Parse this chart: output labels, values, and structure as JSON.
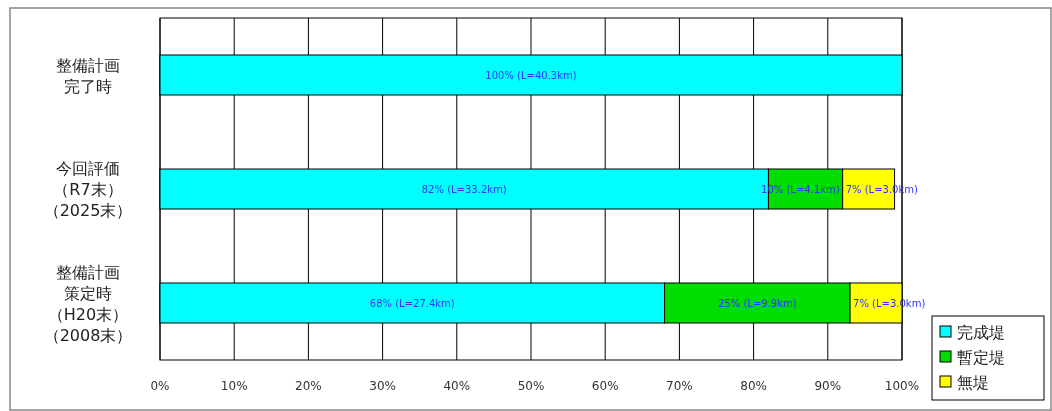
{
  "chart_data": {
    "type": "bar",
    "orientation": "horizontal",
    "stacked": true,
    "categories": [
      "整備計画完了時",
      "今回評価（R7末）（2025末）",
      "整備計画策定時（H20末）（2008末）"
    ],
    "series": [
      {
        "name": "完成堤",
        "color": "#00ffff",
        "values": [
          100,
          82,
          68
        ],
        "value_labels": [
          "100% (L=40.3km)",
          "82% (L=33.2km)",
          "68% (L=27.4km)"
        ]
      },
      {
        "name": "暫定堤",
        "color": "#00dd00",
        "values": [
          0,
          10,
          25
        ],
        "value_labels": [
          null,
          "10% (L=4.1km)",
          "25% (L=9.9km)"
        ]
      },
      {
        "name": "無堤",
        "color": "#ffff00",
        "values": [
          0,
          7,
          7
        ],
        "value_labels": [
          null,
          "7% (L=3.0km)",
          "7% (L=3.0km)"
        ]
      }
    ],
    "xlim": [
      0,
      100
    ],
    "xticks": [
      {
        "value": 0,
        "label": "0%"
      },
      {
        "value": 10,
        "label": "10%"
      },
      {
        "value": 20,
        "label": "20%"
      },
      {
        "value": 30,
        "label": "30%"
      },
      {
        "value": 40,
        "label": "40%"
      },
      {
        "value": 50,
        "label": "50%"
      },
      {
        "value": 60,
        "label": "60%"
      },
      {
        "value": 70,
        "label": "70%"
      },
      {
        "value": 80,
        "label": "80%"
      },
      {
        "value": 90,
        "label": "90%"
      },
      {
        "value": 100,
        "label": "100%"
      }
    ],
    "grid": "x",
    "legend": "bottom right"
  }
}
